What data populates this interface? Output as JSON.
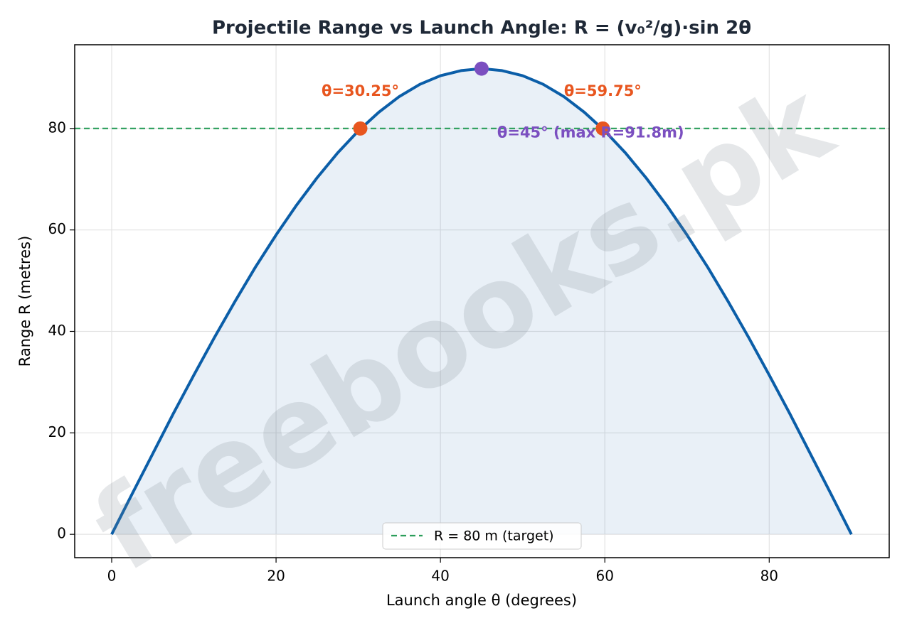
{
  "chart_data": {
    "type": "line",
    "title": "Projectile Range vs Launch Angle: R = (v₀²/g)·sin 2θ",
    "x_label": "Launch angle θ (degrees)",
    "y_label": "Range R (metres)",
    "x": [
      0,
      2.5,
      5,
      7.5,
      10,
      12.5,
      15,
      17.5,
      20,
      22.5,
      25,
      27.5,
      30,
      32.5,
      35,
      37.5,
      40,
      42.5,
      45,
      47.5,
      50,
      52.5,
      55,
      57.5,
      60,
      62.5,
      65,
      67.5,
      70,
      72.5,
      75,
      77.5,
      80,
      82.5,
      85,
      87.5,
      90
    ],
    "series": [
      {
        "color": "#0b5ea8",
        "fill": true,
        "values": [
          0,
          8.0,
          15.9,
          23.8,
          31.4,
          38.8,
          45.9,
          52.7,
          59.0,
          64.9,
          70.3,
          75.2,
          79.5,
          83.2,
          86.3,
          88.7,
          90.4,
          91.4,
          91.8,
          91.4,
          90.4,
          88.7,
          86.3,
          83.2,
          79.5,
          75.2,
          70.3,
          64.9,
          59.0,
          52.7,
          45.9,
          38.8,
          31.4,
          23.8,
          15.9,
          8.0,
          0
        ]
      }
    ],
    "reference_line": {
      "name": "R = 80 m (target)",
      "value": 80,
      "color": "#2a9d5a",
      "dashed": true
    },
    "points": [
      {
        "x": 30.25,
        "y": 80,
        "label": "θ=30.25°",
        "color": "#e8561f"
      },
      {
        "x": 59.75,
        "y": 80,
        "label": "θ=59.75°",
        "color": "#e8561f"
      },
      {
        "x": 45,
        "y": 91.8,
        "label": "θ=45° (max R=91.8m)",
        "color": "#7b4fc0"
      }
    ],
    "xlim": [
      -4.5,
      94.6
    ],
    "ylim": [
      -4.6,
      96.5
    ],
    "xticks": [
      0,
      20,
      40,
      60,
      80
    ],
    "yticks": [
      0,
      20,
      40,
      60,
      80
    ],
    "grid": true,
    "legend": "lower center",
    "watermark": "freebooks.pk"
  }
}
